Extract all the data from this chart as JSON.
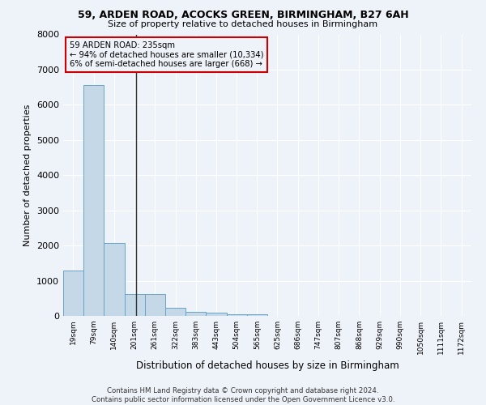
{
  "title1": "59, ARDEN ROAD, ACOCKS GREEN, BIRMINGHAM, B27 6AH",
  "title2": "Size of property relative to detached houses in Birmingham",
  "xlabel": "Distribution of detached houses by size in Birmingham",
  "ylabel": "Number of detached properties",
  "footer1": "Contains HM Land Registry data © Crown copyright and database right 2024.",
  "footer2": "Contains public sector information licensed under the Open Government Licence v3.0.",
  "annotation_line1": "59 ARDEN ROAD: 235sqm",
  "annotation_line2": "← 94% of detached houses are smaller (10,334)",
  "annotation_line3": "6% of semi-detached houses are larger (668) →",
  "property_size_sqm": 235,
  "bar_edges": [
    19,
    79,
    140,
    201,
    261,
    322,
    383,
    443,
    504,
    565,
    625,
    686,
    747,
    807,
    868,
    929,
    990,
    1050,
    1111,
    1172,
    1232
  ],
  "bar_heights": [
    1300,
    6550,
    2080,
    630,
    620,
    230,
    120,
    90,
    55,
    55,
    0,
    0,
    0,
    0,
    0,
    0,
    0,
    0,
    0,
    0
  ],
  "bar_color": "#c5d8e8",
  "bar_edge_color": "#6aa3c8",
  "vline_color": "#333333",
  "annotation_box_color": "#cc0000",
  "background_color": "#eef2f9",
  "grid_color": "#ffffff",
  "ylim": [
    0,
    8000
  ],
  "yticks": [
    0,
    1000,
    2000,
    3000,
    4000,
    5000,
    6000,
    7000,
    8000
  ]
}
